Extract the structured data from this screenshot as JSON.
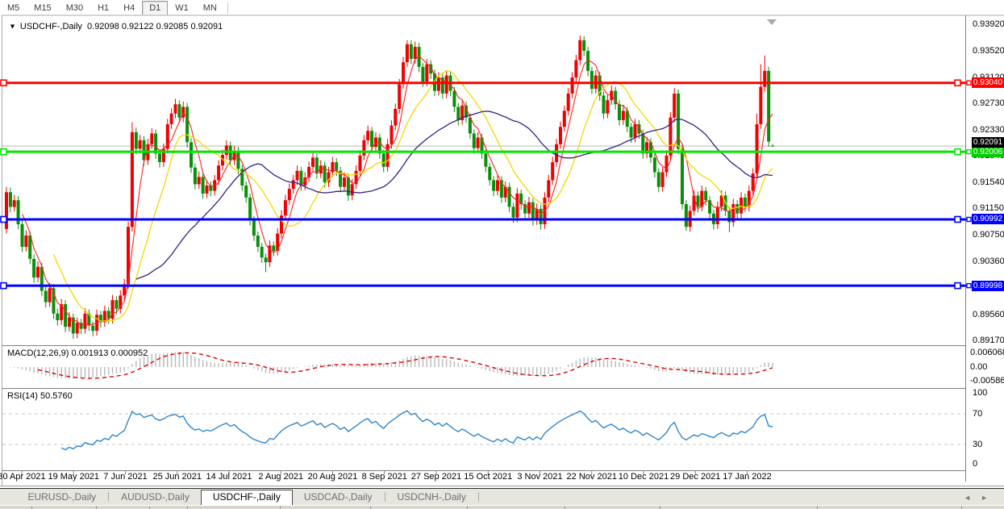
{
  "toolbar": {
    "timeframes": [
      "M5",
      "M15",
      "M30",
      "H1",
      "H4",
      "D1",
      "W1",
      "MN"
    ],
    "active_timeframe": "D1"
  },
  "title": {
    "symbol": "USDCHF-,Daily",
    "ohlc_text": "0.92098 0.92122 0.92085 0.92091"
  },
  "price_axis": {
    "labels": [
      "0.93920",
      "0.93520",
      "0.93120",
      "0.92730",
      "0.92330",
      "0.91940",
      "0.91540",
      "0.91150",
      "0.90750",
      "0.90360",
      "0.89970",
      "0.89560",
      "0.89170"
    ]
  },
  "hlines": [
    {
      "label": "0.93040",
      "value": 0.9304,
      "color": "#ff0000"
    },
    {
      "label": "0.92006",
      "value": 0.92006,
      "color": "#00cc00",
      "line_color": "#00e600"
    },
    {
      "label": "0.90992",
      "value": 0.90992,
      "color": "#0000ff"
    },
    {
      "label": "0.89998",
      "value": 0.89998,
      "color": "#0000ff"
    }
  ],
  "current_price": {
    "label": "0.92091",
    "value": 0.92091,
    "color": "#000000"
  },
  "indicators": {
    "macd": {
      "label": "MACD(12,26,9) 0.001913 0.000952",
      "params": [
        12,
        26,
        9
      ],
      "axis_labels": [
        {
          "text": "0.006068",
          "value": 0.006068
        },
        {
          "text": "0.00",
          "value": 0
        },
        {
          "text": "-0.005865",
          "value": -0.005865
        }
      ],
      "histogram_color": "#b9b9b9",
      "signal_color": "#e00000"
    },
    "rsi": {
      "label": "RSI(14) 50.5760",
      "period": 14,
      "axis_labels": [
        {
          "text": "100",
          "value": 100
        },
        {
          "text": "70",
          "value": 70
        },
        {
          "text": "30",
          "value": 30
        },
        {
          "text": "0",
          "value": 0
        }
      ],
      "levels": [
        70,
        30
      ],
      "line_color": "#2f86cc"
    }
  },
  "date_axis": [
    "30 Apr 2021",
    "19 May 2021",
    "7 Jun 2021",
    "25 Jun 2021",
    "14 Jul 2021",
    "2 Aug 2021",
    "20 Aug 2021",
    "8 Sep 2021",
    "27 Sep 2021",
    "15 Oct 2021",
    "3 Nov 2021",
    "22 Nov 2021",
    "10 Dec 2021",
    "29 Dec 2021",
    "17 Jan 2022"
  ],
  "tabs": {
    "items": [
      "EURUSD-,Daily",
      "AUDUSD-,Daily",
      "USDCHF-,Daily",
      "USDCAD-,Daily",
      "USDCNH-,Daily"
    ],
    "active": "USDCHF-,Daily"
  },
  "chart_data": {
    "type": "candlestick",
    "symbol": "USDCHF-",
    "timeframe": "Daily",
    "up_color": "#f00000",
    "down_color": "#0b8f0b",
    "y_axis": {
      "min": 0.8918,
      "max": 0.9394
    },
    "overlays": [
      {
        "name": "ma-fast",
        "color": "#ff2020"
      },
      {
        "name": "ma-mid",
        "color": "#f2d900"
      },
      {
        "name": "ma-slow",
        "color": "#3b1d85"
      }
    ],
    "candles": [
      [
        0.9085,
        0.9148,
        0.9078,
        0.914
      ],
      [
        0.914,
        0.9147,
        0.911,
        0.9118
      ],
      [
        0.9118,
        0.9136,
        0.9111,
        0.9128
      ],
      [
        0.9128,
        0.9134,
        0.9084,
        0.9092
      ],
      [
        0.9092,
        0.9098,
        0.905,
        0.9058
      ],
      [
        0.9058,
        0.9083,
        0.9051,
        0.9075
      ],
      [
        0.9075,
        0.9081,
        0.9032,
        0.904
      ],
      [
        0.904,
        0.9047,
        0.9004,
        0.9012
      ],
      [
        0.9012,
        0.9036,
        0.9005,
        0.9028
      ],
      [
        0.9028,
        0.9034,
        0.8984,
        0.8992
      ],
      [
        0.8992,
        0.8999,
        0.8967,
        0.8975
      ],
      [
        0.8975,
        0.9004,
        0.8968,
        0.8996
      ],
      [
        0.8996,
        0.9002,
        0.895,
        0.8958
      ],
      [
        0.8958,
        0.8965,
        0.894,
        0.8948
      ],
      [
        0.8948,
        0.898,
        0.8941,
        0.8972
      ],
      [
        0.8972,
        0.8978,
        0.893,
        0.8938
      ],
      [
        0.8938,
        0.896,
        0.8931,
        0.8952
      ],
      [
        0.8952,
        0.8958,
        0.892,
        0.8928
      ],
      [
        0.8928,
        0.8952,
        0.8921,
        0.8944
      ],
      [
        0.8944,
        0.895,
        0.8927,
        0.8935
      ],
      [
        0.8935,
        0.8966,
        0.8928,
        0.8958
      ],
      [
        0.8958,
        0.8964,
        0.8932,
        0.894
      ],
      [
        0.894,
        0.8946,
        0.8924,
        0.8932
      ],
      [
        0.8932,
        0.8964,
        0.8925,
        0.8956
      ],
      [
        0.8956,
        0.8962,
        0.8937,
        0.8945
      ],
      [
        0.8945,
        0.897,
        0.8938,
        0.8962
      ],
      [
        0.8962,
        0.8968,
        0.8942,
        0.895
      ],
      [
        0.895,
        0.8986,
        0.8943,
        0.8978
      ],
      [
        0.8978,
        0.8984,
        0.8957,
        0.8965
      ],
      [
        0.8965,
        0.8993,
        0.8958,
        0.8985
      ],
      [
        0.8985,
        0.901,
        0.8978,
        0.9002
      ],
      [
        0.9002,
        0.9096,
        0.8995,
        0.9088
      ],
      [
        0.9088,
        0.9245,
        0.9081,
        0.923
      ],
      [
        0.923,
        0.9237,
        0.9197,
        0.9205
      ],
      [
        0.9205,
        0.9226,
        0.9198,
        0.9218
      ],
      [
        0.9218,
        0.9224,
        0.918,
        0.9188
      ],
      [
        0.9188,
        0.922,
        0.9181,
        0.9212
      ],
      [
        0.9212,
        0.9236,
        0.9205,
        0.9228
      ],
      [
        0.9228,
        0.9234,
        0.919,
        0.9198
      ],
      [
        0.9198,
        0.9204,
        0.9177,
        0.9185
      ],
      [
        0.9185,
        0.9213,
        0.9178,
        0.9205
      ],
      [
        0.9205,
        0.925,
        0.9198,
        0.9242
      ],
      [
        0.9242,
        0.9266,
        0.9235,
        0.9258
      ],
      [
        0.9258,
        0.928,
        0.9251,
        0.9272
      ],
      [
        0.9272,
        0.9278,
        0.9244,
        0.9252
      ],
      [
        0.9252,
        0.9276,
        0.9245,
        0.9268
      ],
      [
        0.9268,
        0.9274,
        0.9207,
        0.9215
      ],
      [
        0.9215,
        0.9221,
        0.9169,
        0.9177
      ],
      [
        0.9177,
        0.9183,
        0.9144,
        0.9152
      ],
      [
        0.9152,
        0.9171,
        0.9145,
        0.9163
      ],
      [
        0.9163,
        0.9169,
        0.913,
        0.9138
      ],
      [
        0.9138,
        0.9158,
        0.9131,
        0.915
      ],
      [
        0.915,
        0.9156,
        0.9134,
        0.9142
      ],
      [
        0.9142,
        0.9166,
        0.9135,
        0.9158
      ],
      [
        0.9158,
        0.9188,
        0.9151,
        0.918
      ],
      [
        0.918,
        0.9204,
        0.9173,
        0.9196
      ],
      [
        0.9196,
        0.9218,
        0.9189,
        0.921
      ],
      [
        0.921,
        0.9216,
        0.918,
        0.9188
      ],
      [
        0.9188,
        0.921,
        0.9181,
        0.9202
      ],
      [
        0.9202,
        0.9208,
        0.9167,
        0.9175
      ],
      [
        0.9175,
        0.9181,
        0.9142,
        0.915
      ],
      [
        0.915,
        0.9156,
        0.9124,
        0.9132
      ],
      [
        0.9132,
        0.9138,
        0.909,
        0.9098
      ],
      [
        0.9098,
        0.9104,
        0.9067,
        0.9075
      ],
      [
        0.9075,
        0.9081,
        0.905,
        0.9058
      ],
      [
        0.9058,
        0.9064,
        0.9034,
        0.9042
      ],
      [
        0.9042,
        0.9048,
        0.902,
        0.9035
      ],
      [
        0.9035,
        0.9068,
        0.9028,
        0.906
      ],
      [
        0.906,
        0.9066,
        0.9044,
        0.9052
      ],
      [
        0.9052,
        0.9086,
        0.9045,
        0.9078
      ],
      [
        0.9078,
        0.9113,
        0.9071,
        0.9105
      ],
      [
        0.9105,
        0.9136,
        0.9098,
        0.9128
      ],
      [
        0.9128,
        0.9153,
        0.9121,
        0.9145
      ],
      [
        0.9145,
        0.9166,
        0.9138,
        0.9158
      ],
      [
        0.9158,
        0.918,
        0.9151,
        0.9172
      ],
      [
        0.9172,
        0.9178,
        0.9142,
        0.915
      ],
      [
        0.915,
        0.917,
        0.9143,
        0.9162
      ],
      [
        0.9162,
        0.9186,
        0.9155,
        0.9178
      ],
      [
        0.9178,
        0.92,
        0.9171,
        0.9192
      ],
      [
        0.9192,
        0.9198,
        0.916,
        0.9168
      ],
      [
        0.9168,
        0.9188,
        0.9161,
        0.918
      ],
      [
        0.918,
        0.9186,
        0.9147,
        0.9155
      ],
      [
        0.9155,
        0.9178,
        0.9148,
        0.917
      ],
      [
        0.917,
        0.9193,
        0.9163,
        0.9185
      ],
      [
        0.9185,
        0.9191,
        0.9164,
        0.9172
      ],
      [
        0.9172,
        0.9178,
        0.914,
        0.9148
      ],
      [
        0.9148,
        0.917,
        0.9141,
        0.9162
      ],
      [
        0.9162,
        0.9168,
        0.9127,
        0.9135
      ],
      [
        0.9135,
        0.916,
        0.9128,
        0.9152
      ],
      [
        0.9152,
        0.918,
        0.9145,
        0.9172
      ],
      [
        0.9172,
        0.9203,
        0.9165,
        0.9195
      ],
      [
        0.9195,
        0.9226,
        0.9188,
        0.9218
      ],
      [
        0.9218,
        0.924,
        0.9211,
        0.9232
      ],
      [
        0.9232,
        0.9238,
        0.92,
        0.9208
      ],
      [
        0.9208,
        0.923,
        0.9201,
        0.9222
      ],
      [
        0.9222,
        0.9228,
        0.919,
        0.9198
      ],
      [
        0.9198,
        0.9204,
        0.917,
        0.9178
      ],
      [
        0.9178,
        0.922,
        0.9171,
        0.9212
      ],
      [
        0.9212,
        0.9248,
        0.9205,
        0.924
      ],
      [
        0.924,
        0.9273,
        0.9233,
        0.9265
      ],
      [
        0.9265,
        0.931,
        0.9258,
        0.9302
      ],
      [
        0.9302,
        0.9343,
        0.9295,
        0.9335
      ],
      [
        0.9335,
        0.9368,
        0.9328,
        0.9362
      ],
      [
        0.9362,
        0.9368,
        0.9332,
        0.934
      ],
      [
        0.934,
        0.9366,
        0.9333,
        0.9358
      ],
      [
        0.9358,
        0.9364,
        0.932,
        0.9328
      ],
      [
        0.9328,
        0.9334,
        0.9298,
        0.9306
      ],
      [
        0.9306,
        0.934,
        0.9299,
        0.9332
      ],
      [
        0.9332,
        0.9338,
        0.931,
        0.9318
      ],
      [
        0.9318,
        0.9324,
        0.9284,
        0.9292
      ],
      [
        0.9292,
        0.932,
        0.9285,
        0.9312
      ],
      [
        0.9312,
        0.9318,
        0.928,
        0.9288
      ],
      [
        0.9288,
        0.9323,
        0.9281,
        0.9315
      ],
      [
        0.9315,
        0.9321,
        0.9284,
        0.9292
      ],
      [
        0.9292,
        0.9298,
        0.926,
        0.9268
      ],
      [
        0.9268,
        0.9274,
        0.924,
        0.9248
      ],
      [
        0.9248,
        0.9278,
        0.9241,
        0.927
      ],
      [
        0.927,
        0.9276,
        0.9244,
        0.9252
      ],
      [
        0.9252,
        0.9258,
        0.922,
        0.9228
      ],
      [
        0.9228,
        0.9234,
        0.9198,
        0.9206
      ],
      [
        0.9206,
        0.923,
        0.9199,
        0.9222
      ],
      [
        0.9222,
        0.9228,
        0.919,
        0.9198
      ],
      [
        0.9198,
        0.9204,
        0.917,
        0.9178
      ],
      [
        0.9178,
        0.9184,
        0.915,
        0.9158
      ],
      [
        0.9158,
        0.9164,
        0.9134,
        0.9142
      ],
      [
        0.9142,
        0.9166,
        0.9135,
        0.9158
      ],
      [
        0.9158,
        0.9164,
        0.9124,
        0.9132
      ],
      [
        0.9132,
        0.9156,
        0.9125,
        0.9148
      ],
      [
        0.9148,
        0.9154,
        0.911,
        0.9118
      ],
      [
        0.9118,
        0.9124,
        0.9094,
        0.9102
      ],
      [
        0.9102,
        0.9146,
        0.9095,
        0.9138
      ],
      [
        0.9138,
        0.9144,
        0.9114,
        0.9122
      ],
      [
        0.9122,
        0.9128,
        0.91,
        0.9108
      ],
      [
        0.9108,
        0.9133,
        0.9101,
        0.9125
      ],
      [
        0.9125,
        0.9131,
        0.909,
        0.9098
      ],
      [
        0.9098,
        0.9123,
        0.9091,
        0.9115
      ],
      [
        0.9115,
        0.9121,
        0.9084,
        0.9092
      ],
      [
        0.9092,
        0.914,
        0.9085,
        0.9132
      ],
      [
        0.9132,
        0.9166,
        0.9125,
        0.9158
      ],
      [
        0.9158,
        0.9193,
        0.9151,
        0.9185
      ],
      [
        0.9185,
        0.922,
        0.9178,
        0.9212
      ],
      [
        0.9212,
        0.9246,
        0.9205,
        0.9238
      ],
      [
        0.9238,
        0.927,
        0.9231,
        0.9262
      ],
      [
        0.9262,
        0.9296,
        0.9255,
        0.9288
      ],
      [
        0.9288,
        0.932,
        0.9281,
        0.9312
      ],
      [
        0.9312,
        0.9346,
        0.9305,
        0.9338
      ],
      [
        0.9338,
        0.9375,
        0.9331,
        0.9368
      ],
      [
        0.9368,
        0.9374,
        0.9344,
        0.9352
      ],
      [
        0.9352,
        0.9358,
        0.9314,
        0.9322
      ],
      [
        0.9322,
        0.9328,
        0.9287,
        0.9295
      ],
      [
        0.9295,
        0.9323,
        0.9288,
        0.9315
      ],
      [
        0.9315,
        0.9321,
        0.9277,
        0.9285
      ],
      [
        0.9285,
        0.9291,
        0.925,
        0.9258
      ],
      [
        0.9258,
        0.9286,
        0.9251,
        0.9278
      ],
      [
        0.9278,
        0.93,
        0.9271,
        0.9292
      ],
      [
        0.9292,
        0.9298,
        0.9264,
        0.9272
      ],
      [
        0.9272,
        0.9278,
        0.924,
        0.9248
      ],
      [
        0.9248,
        0.927,
        0.9241,
        0.9262
      ],
      [
        0.9262,
        0.9268,
        0.923,
        0.9238
      ],
      [
        0.9238,
        0.9244,
        0.9214,
        0.9222
      ],
      [
        0.9222,
        0.925,
        0.9215,
        0.9242
      ],
      [
        0.9242,
        0.9248,
        0.922,
        0.9228
      ],
      [
        0.9228,
        0.9234,
        0.919,
        0.9198
      ],
      [
        0.9198,
        0.9223,
        0.9191,
        0.9215
      ],
      [
        0.9215,
        0.9221,
        0.9184,
        0.9192
      ],
      [
        0.9192,
        0.9198,
        0.9162,
        0.917
      ],
      [
        0.917,
        0.9176,
        0.914,
        0.9148
      ],
      [
        0.9148,
        0.9178,
        0.9141,
        0.917
      ],
      [
        0.917,
        0.9203,
        0.9163,
        0.9195
      ],
      [
        0.9195,
        0.926,
        0.9188,
        0.9252
      ],
      [
        0.9252,
        0.9296,
        0.9245,
        0.9288
      ],
      [
        0.9288,
        0.9294,
        0.9197,
        0.9205
      ],
      [
        0.9205,
        0.9211,
        0.9114,
        0.9122
      ],
      [
        0.9122,
        0.9128,
        0.9082,
        0.9088
      ],
      [
        0.9088,
        0.912,
        0.9081,
        0.9112
      ],
      [
        0.9112,
        0.9143,
        0.9105,
        0.9135
      ],
      [
        0.9135,
        0.9141,
        0.911,
        0.9118
      ],
      [
        0.9118,
        0.915,
        0.9111,
        0.9142
      ],
      [
        0.9142,
        0.9148,
        0.912,
        0.9128
      ],
      [
        0.9128,
        0.9134,
        0.91,
        0.9108
      ],
      [
        0.9108,
        0.9114,
        0.9084,
        0.9092
      ],
      [
        0.9092,
        0.9126,
        0.9085,
        0.9118
      ],
      [
        0.9118,
        0.9143,
        0.9111,
        0.9135
      ],
      [
        0.9135,
        0.9141,
        0.9104,
        0.9112
      ],
      [
        0.9112,
        0.9118,
        0.908,
        0.9095
      ],
      [
        0.9095,
        0.913,
        0.9088,
        0.9122
      ],
      [
        0.9122,
        0.9128,
        0.91,
        0.9108
      ],
      [
        0.9108,
        0.914,
        0.9101,
        0.9132
      ],
      [
        0.9132,
        0.9138,
        0.911,
        0.9118
      ],
      [
        0.9118,
        0.915,
        0.9111,
        0.9142
      ],
      [
        0.9142,
        0.9176,
        0.9135,
        0.9168
      ],
      [
        0.9168,
        0.9258,
        0.9161,
        0.9242
      ],
      [
        0.9242,
        0.9332,
        0.9235,
        0.9298
      ],
      [
        0.9298,
        0.9345,
        0.9291,
        0.9322
      ],
      [
        0.9322,
        0.9328,
        0.9208,
        0.9216
      ],
      [
        0.92098,
        0.92122,
        0.92085,
        0.92091
      ]
    ]
  }
}
